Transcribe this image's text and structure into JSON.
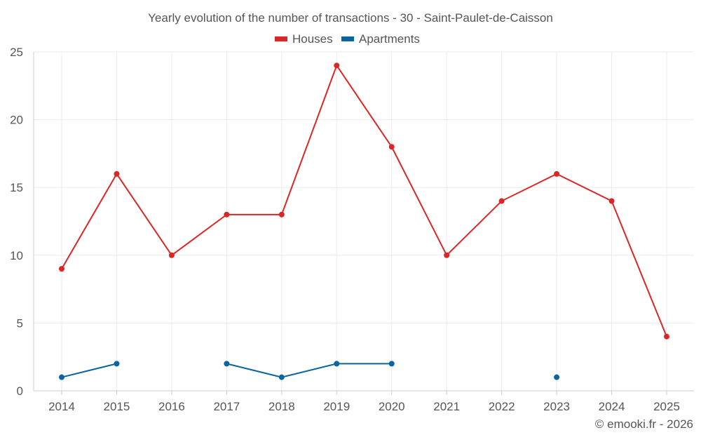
{
  "chart_data": {
    "type": "line",
    "title": "Yearly evolution of the number of transactions - 30 - Saint-Paulet-de-Caisson",
    "xlabel": "",
    "ylabel": "",
    "categories": [
      "2014",
      "2015",
      "2016",
      "2017",
      "2018",
      "2019",
      "2020",
      "2021",
      "2022",
      "2023",
      "2024",
      "2025"
    ],
    "ylim": [
      0,
      25
    ],
    "yticks": [
      "0",
      "5",
      "10",
      "15",
      "20",
      "25"
    ],
    "grid": true,
    "legend_position": "top-center",
    "series": [
      {
        "name": "Houses",
        "color": "#dc2626",
        "values": [
          9,
          16,
          10,
          13,
          13,
          24,
          18,
          10,
          14,
          16,
          14,
          4
        ]
      },
      {
        "name": "Apartments",
        "color": "#0a64a0",
        "values": [
          1,
          2,
          null,
          2,
          1,
          2,
          2,
          null,
          null,
          1,
          null,
          null
        ]
      }
    ],
    "credit": "© emooki.fr - 2026"
  }
}
